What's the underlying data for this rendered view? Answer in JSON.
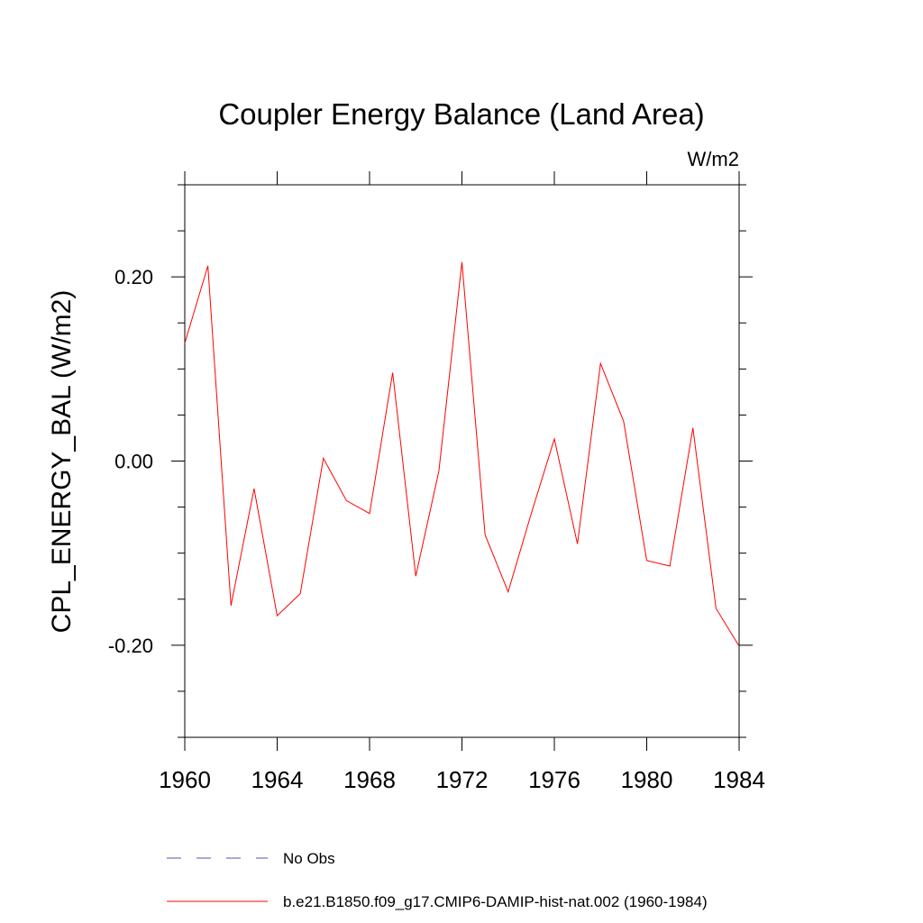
{
  "chart_data": {
    "type": "line",
    "title": "Coupler Energy Balance (Land Area)",
    "units": "W/m2",
    "ylabel": "CPL_ENERGY_BAL  (W/m2)",
    "xlabel": "",
    "xlim": [
      1960,
      1984
    ],
    "ylim": [
      -0.3,
      0.3
    ],
    "x_ticks": [
      1960,
      1964,
      1968,
      1972,
      1976,
      1980,
      1984
    ],
    "x_tick_labels": [
      "1960",
      "1964",
      "1968",
      "1972",
      "1976",
      "1980",
      "1984"
    ],
    "y_ticks": [
      -0.2,
      0.0,
      0.2
    ],
    "y_tick_labels": [
      "-0.20",
      "0.00",
      "0.20"
    ],
    "y_minor_tick_step": 0.05,
    "x_minor_tick_step": 1,
    "grid": false,
    "legend_position": "bottom",
    "series": [
      {
        "name": "b.e21.B1850.f09_g17.CMIP6-DAMIP-hist-nat.002 (1960-1984)",
        "color": "#ff0000",
        "style": "solid",
        "x": [
          1960,
          1961,
          1962,
          1963,
          1964,
          1965,
          1966,
          1967,
          1968,
          1969,
          1970,
          1971,
          1972,
          1973,
          1974,
          1975,
          1976,
          1977,
          1978,
          1979,
          1980,
          1981,
          1982,
          1983,
          1984
        ],
        "values": [
          0.128,
          0.212,
          -0.157,
          -0.03,
          -0.168,
          -0.144,
          0.003,
          -0.043,
          -0.057,
          0.096,
          -0.125,
          -0.011,
          0.216,
          -0.08,
          -0.142,
          -0.057,
          0.024,
          -0.09,
          0.106,
          0.043,
          -0.108,
          -0.114,
          0.036,
          -0.16,
          -0.201
        ]
      }
    ],
    "legend": [
      {
        "label": "No Obs",
        "color": "#5555aa",
        "style": "dashed"
      },
      {
        "label": "b.e21.B1850.f09_g17.CMIP6-DAMIP-hist-nat.002 (1960-1984)",
        "color": "#ff0000",
        "style": "solid"
      }
    ]
  }
}
